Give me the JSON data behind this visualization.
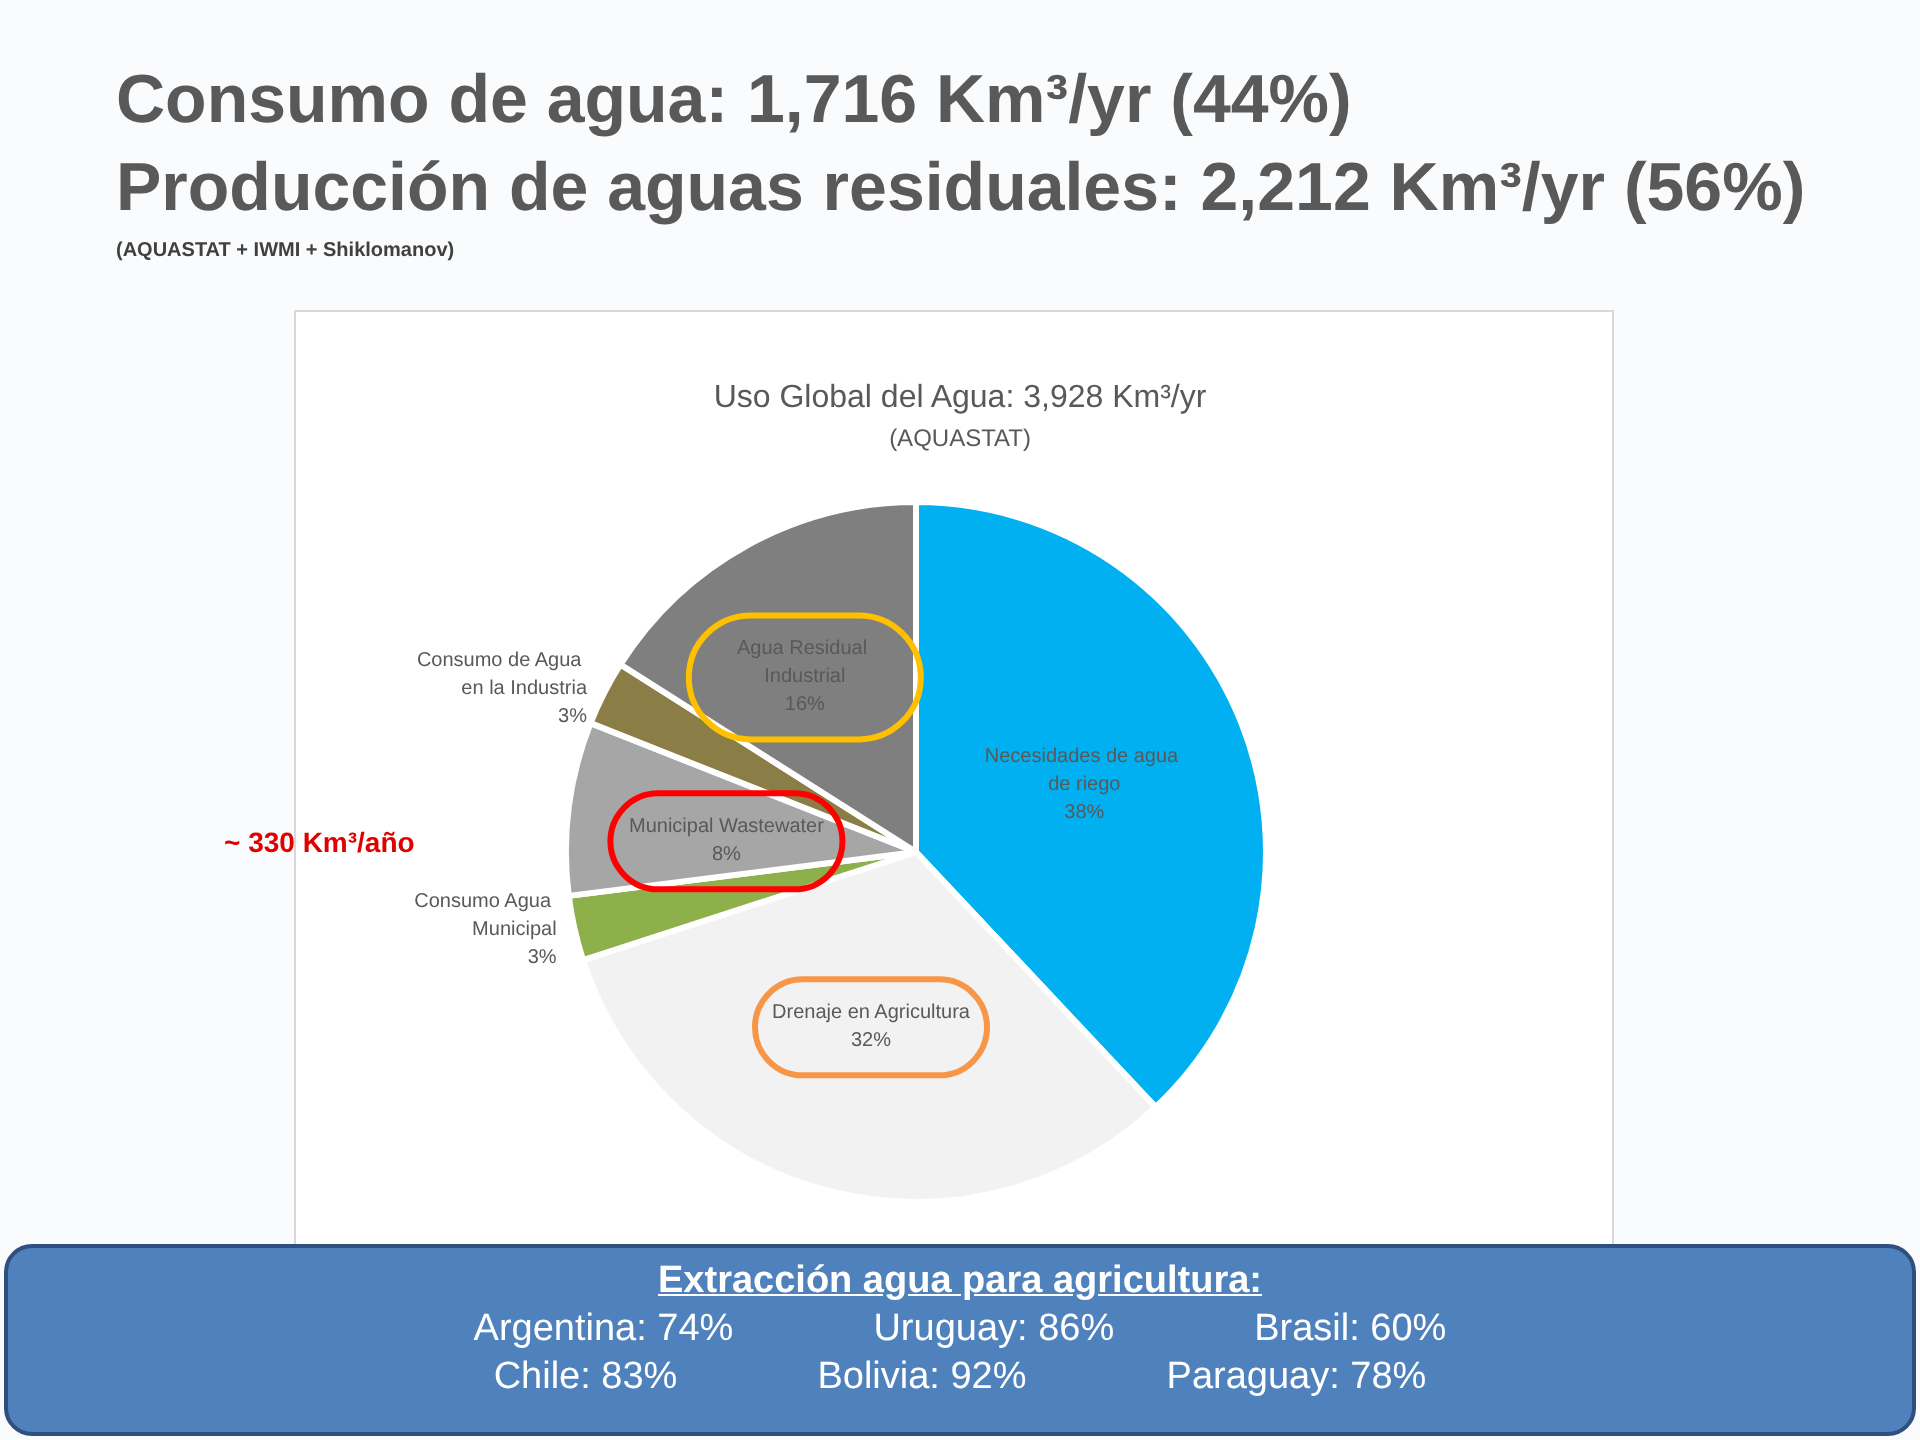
{
  "chart_data": {
    "type": "pie",
    "title": "Uso Global del Agua: 3,928 Km³/yr",
    "subtitle": "(AQUASTAT)",
    "categories": [
      "Necesidades de agua de riego",
      "Drenaje en Agricultura",
      "Consumo Agua Municipal",
      "Municipal Wastewater",
      "Consumo de Agua en la Industria",
      "Agua Residual Industrial"
    ],
    "values": [
      38,
      32,
      3,
      8,
      3,
      16
    ],
    "value_labels": [
      "38%",
      "32%",
      "3%",
      "8%",
      "3%",
      "16%"
    ],
    "colors": [
      "#00b0f0",
      "#f2f2f2",
      "#8db04a",
      "#a6a6a6",
      "#8a7d45",
      "#7f7f7f"
    ],
    "annotations": [
      "Consumo de agua: 1,716 Km³/yr (44%)",
      "Producción de aguas residuales: 2,212 Km³/yr (56%)",
      "(AQUASTAT + IWMI + Shiklomanov)",
      "~ 330 Km³/año",
      "Extracción agua para agricultura:",
      "Argentina: 74%",
      "Uruguay: 86%",
      "Brasil: 60%",
      "Chile:  83%",
      "Bolivia: 92%",
      "Paraguay: 78%"
    ]
  }
}
